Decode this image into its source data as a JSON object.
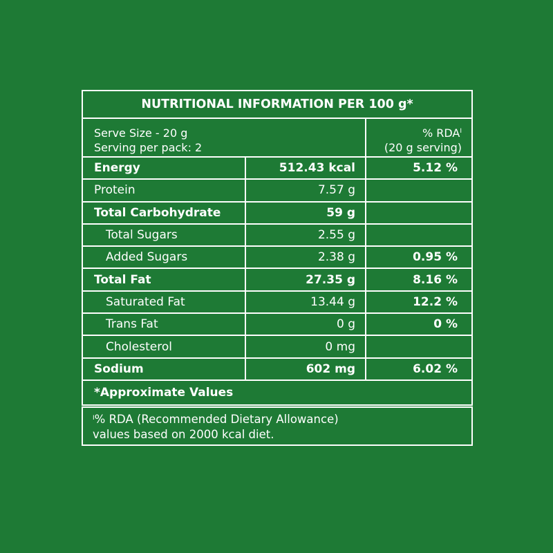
{
  "title": "NUTRITIONAL INFORMATION PER 100 g*",
  "header": {
    "serve_size": "Serve Size - 20 g",
    "servings": "Serving per pack: 2",
    "rda_label": "% RDA",
    "rda_mark": "I",
    "rda_basis": "(20 g serving)"
  },
  "rows": [
    {
      "name": "Energy",
      "amount": "512.43 kcal",
      "rda": "5.12 %"
    },
    {
      "name": "Protein",
      "amount": "7.57 g",
      "rda": ""
    },
    {
      "name": "Total Carbohydrate",
      "amount": "59 g",
      "rda": ""
    },
    {
      "name": "Total Sugars",
      "amount": "2.55 g",
      "rda": ""
    },
    {
      "name": "Added Sugars",
      "amount": "2.38 g",
      "rda": "0.95 %"
    },
    {
      "name": "Total Fat",
      "amount": "27.35 g",
      "rda": "8.16 %"
    },
    {
      "name": "Saturated Fat",
      "amount": "13.44 g",
      "rda": "12.2 %"
    },
    {
      "name": "Trans Fat",
      "amount": "0 g",
      "rda": "0 %"
    },
    {
      "name": "Cholesterol",
      "amount": "0 mg",
      "rda": ""
    },
    {
      "name": "Sodium",
      "amount": "602 mg",
      "rda": "6.02 %"
    }
  ],
  "approx_note": "*Approximate Values",
  "footnote": {
    "mark": "I",
    "line1": "% RDA (Recommended Dietary Allowance)",
    "line2": "values based on 2000 kcal diet."
  },
  "colors": {
    "background": "#1e7a35",
    "foreground": "#ffffff"
  }
}
